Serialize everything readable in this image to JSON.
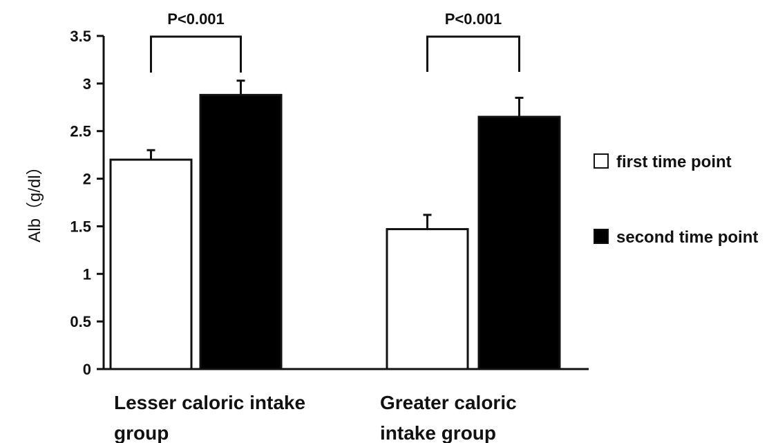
{
  "chart_data": {
    "type": "bar",
    "ylabel": "Alb（g/dl）",
    "ylim": [
      0,
      3.5
    ],
    "yticks": [
      0,
      0.5,
      1,
      1.5,
      2,
      2.5,
      3,
      3.5
    ],
    "ytick_labels": [
      "0",
      "0.5",
      "1",
      "1.5",
      "2",
      "2.5",
      "3",
      "3.5"
    ],
    "categories": [
      [
        "Lesser caloric intake",
        "group"
      ],
      [
        "Greater caloric",
        "intake  group"
      ]
    ],
    "series": [
      {
        "name": "first time point",
        "values": [
          2.2,
          1.47
        ],
        "errors": [
          0.1,
          0.15
        ],
        "color": "#ffffff"
      },
      {
        "name": "second time point",
        "values": [
          2.88,
          2.65
        ],
        "errors": [
          0.15,
          0.2
        ],
        "color": "#000000"
      }
    ],
    "annotations": [
      {
        "text": "P<0.001",
        "category": 0
      },
      {
        "text": "P<0.001",
        "category": 1
      }
    ],
    "legend": {
      "placement": "right"
    },
    "grid": false
  }
}
